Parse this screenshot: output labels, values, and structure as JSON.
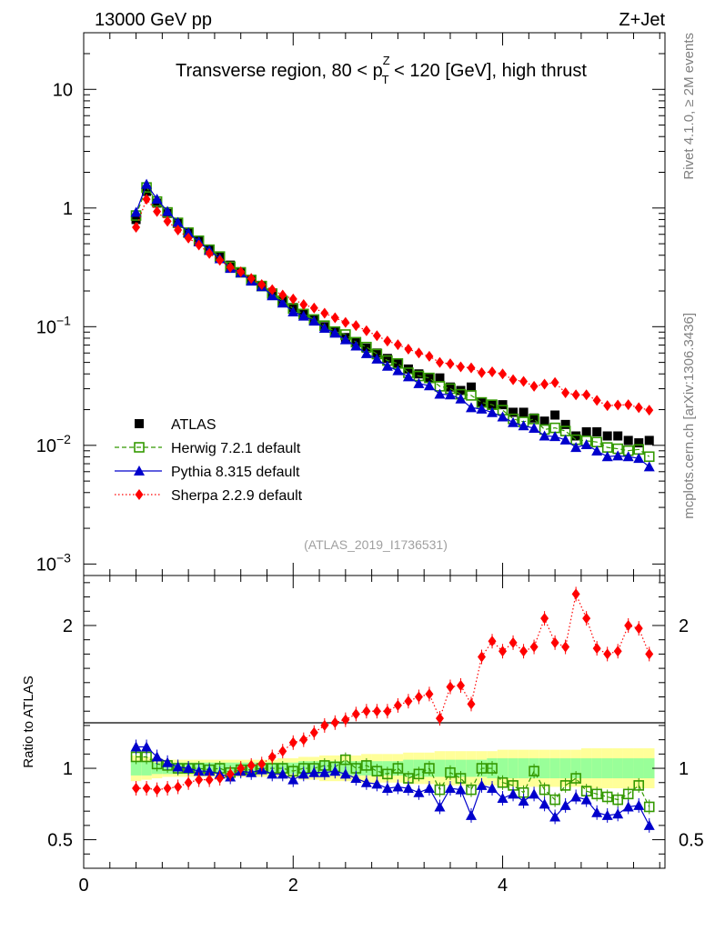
{
  "header": {
    "left": "13000 GeV pp",
    "right": "Z+Jet"
  },
  "side_labels": {
    "rivet": "Rivet 4.1.0, ≥ 2M events",
    "mcplots": "mcplots.cern.ch [arXiv:1306.3436]"
  },
  "chart_data": {
    "type": "line",
    "title_parts": {
      "before": "Transverse region, 80 < p",
      "sup": "Z",
      "sub": "T",
      "after": " < 120 [GeV], high thrust"
    },
    "watermark": "(ATLAS_2019_I1736531)",
    "ratio_ylabel": "Ratio to ATLAS",
    "x": [
      0.5,
      0.6,
      0.7,
      0.8,
      0.9,
      1.0,
      1.1,
      1.2,
      1.3,
      1.4,
      1.5,
      1.6,
      1.7,
      1.8,
      1.9,
      2.0,
      2.1,
      2.2,
      2.3,
      2.4,
      2.5,
      2.6,
      2.7,
      2.8,
      2.9,
      3.0,
      3.1,
      3.2,
      3.3,
      3.4,
      3.5,
      3.6,
      3.7,
      3.8,
      3.9,
      4.0,
      4.1,
      4.2,
      4.3,
      4.4,
      4.5,
      4.6,
      4.7,
      4.8,
      4.9,
      5.0,
      5.1,
      5.2,
      5.3,
      5.4
    ],
    "main": {
      "yscale": "log",
      "ylim": [
        0.0008,
        30
      ],
      "yticks": [
        {
          "v": 0.001,
          "base": "10",
          "exp": "−3"
        },
        {
          "v": 0.01,
          "base": "10",
          "exp": "−2"
        },
        {
          "v": 0.1,
          "base": "10",
          "exp": "−1"
        },
        {
          "v": 1,
          "label": "1"
        },
        {
          "v": 10,
          "label": "10"
        }
      ]
    },
    "ratio": {
      "ylim": [
        0.3,
        2.35
      ],
      "yticks": [
        0.5,
        1,
        2
      ]
    },
    "xlim": [
      0,
      5.55
    ],
    "xticks": [
      0,
      2,
      4
    ],
    "band_rel_inner": [
      0.05,
      0.05,
      0.04,
      0.04,
      0.04,
      0.04,
      0.04,
      0.04,
      0.04,
      0.04,
      0.04,
      0.04,
      0.04,
      0.04,
      0.04,
      0.04,
      0.05,
      0.05,
      0.05,
      0.05,
      0.05,
      0.05,
      0.05,
      0.05,
      0.05,
      0.05,
      0.06,
      0.06,
      0.06,
      0.06,
      0.06,
      0.06,
      0.06,
      0.06,
      0.07,
      0.07,
      0.07,
      0.07,
      0.07,
      0.07,
      0.07,
      0.07,
      0.07,
      0.07,
      0.07,
      0.07,
      0.07,
      0.07,
      0.07,
      0.07
    ],
    "band_rel_outer": [
      0.09,
      0.08,
      0.07,
      0.06,
      0.06,
      0.06,
      0.06,
      0.06,
      0.06,
      0.06,
      0.06,
      0.06,
      0.06,
      0.06,
      0.07,
      0.07,
      0.08,
      0.08,
      0.09,
      0.09,
      0.09,
      0.09,
      0.1,
      0.1,
      0.1,
      0.1,
      0.11,
      0.11,
      0.11,
      0.12,
      0.12,
      0.12,
      0.12,
      0.12,
      0.12,
      0.13,
      0.13,
      0.13,
      0.13,
      0.13,
      0.13,
      0.13,
      0.13,
      0.14,
      0.14,
      0.14,
      0.14,
      0.14,
      0.14,
      0.14
    ],
    "series": [
      {
        "name": "ATLAS",
        "color": "#000000",
        "marker": "square-filled",
        "line": "none",
        "values": [
          0.8,
          1.38,
          1.1,
          0.9,
          0.75,
          0.62,
          0.53,
          0.45,
          0.39,
          0.33,
          0.29,
          0.25,
          0.22,
          0.19,
          0.165,
          0.145,
          0.128,
          0.115,
          0.1,
          0.09,
          0.081,
          0.074,
          0.066,
          0.06,
          0.054,
          0.049,
          0.044,
          0.04,
          0.037,
          0.037,
          0.031,
          0.029,
          0.031,
          0.023,
          0.022,
          0.022,
          0.019,
          0.019,
          0.017,
          0.016,
          0.018,
          0.015,
          0.012,
          0.013,
          0.013,
          0.012,
          0.012,
          0.011,
          0.0105,
          0.011
        ]
      },
      {
        "name": "Herwig 7.2.1 default",
        "color": "#339900",
        "marker": "square-open",
        "line": "dashed",
        "ratio": [
          1.08,
          1.08,
          1.03,
          1.02,
          1.0,
          1.0,
          1.0,
          0.99,
          1.0,
          0.97,
          0.99,
          0.99,
          1.0,
          1.0,
          1.0,
          0.98,
          1.0,
          1.0,
          1.02,
          1.01,
          1.06,
          1.0,
          1.02,
          0.98,
          0.96,
          1.0,
          0.93,
          0.96,
          1.0,
          0.85,
          0.97,
          0.93,
          0.85,
          1.0,
          1.0,
          0.9,
          0.88,
          0.83,
          0.98,
          0.85,
          0.78,
          0.88,
          0.93,
          0.84,
          0.82,
          0.8,
          0.78,
          0.82,
          0.88,
          0.73
        ]
      },
      {
        "name": "Pythia 8.315 default",
        "color": "#0000cc",
        "marker": "triangle-filled",
        "line": "solid",
        "ratio": [
          1.15,
          1.15,
          1.08,
          1.04,
          1.01,
          1.0,
          0.98,
          0.98,
          0.96,
          0.94,
          0.98,
          0.97,
          0.99,
          0.96,
          0.96,
          0.92,
          0.96,
          0.97,
          0.97,
          0.98,
          0.96,
          0.93,
          0.9,
          0.89,
          0.86,
          0.87,
          0.86,
          0.83,
          0.86,
          0.73,
          0.86,
          0.85,
          0.67,
          0.88,
          0.86,
          0.79,
          0.82,
          0.77,
          0.82,
          0.75,
          0.66,
          0.74,
          0.8,
          0.78,
          0.69,
          0.67,
          0.68,
          0.73,
          0.74,
          0.6
        ]
      },
      {
        "name": "Sherpa 2.2.9 default",
        "color": "#ff0000",
        "marker": "diamond-filled",
        "line": "dotted",
        "ratio": [
          0.86,
          0.86,
          0.85,
          0.86,
          0.87,
          0.9,
          0.92,
          0.92,
          0.93,
          0.96,
          1.0,
          1.02,
          1.03,
          1.08,
          1.12,
          1.18,
          1.2,
          1.25,
          1.3,
          1.32,
          1.34,
          1.38,
          1.4,
          1.4,
          1.4,
          1.44,
          1.47,
          1.5,
          1.52,
          1.35,
          1.57,
          1.58,
          1.45,
          1.78,
          1.89,
          1.82,
          1.88,
          1.82,
          1.85,
          2.05,
          1.88,
          1.85,
          2.22,
          2.05,
          1.84,
          1.8,
          1.82,
          2.0,
          1.98,
          1.8
        ]
      }
    ]
  }
}
